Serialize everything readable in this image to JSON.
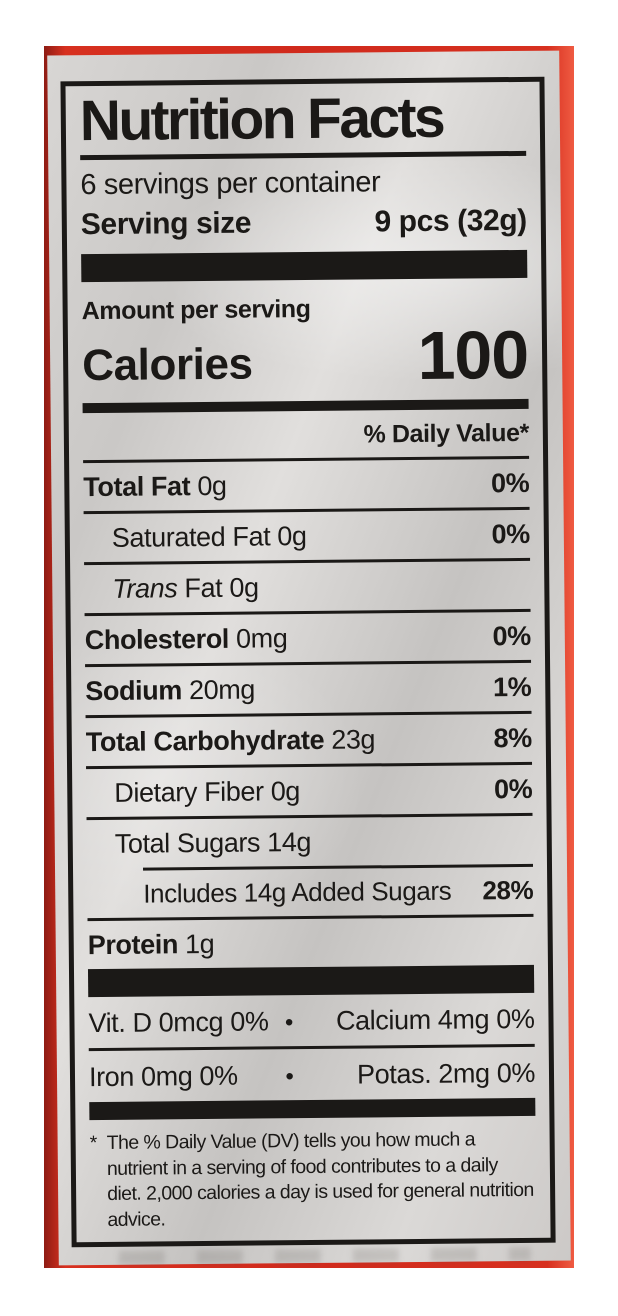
{
  "colors": {
    "package_red": "#d12a1e",
    "label_gray": "#d3d1cf",
    "ink": "#1b1917"
  },
  "panel": {
    "title": "Nutrition Facts",
    "servings_per_container": "6 servings per container",
    "serving_size_label": "Serving size",
    "serving_size_value": "9 pcs (32g)",
    "amount_per_serving": "Amount per serving",
    "calories_label": "Calories",
    "calories_value": "100",
    "daily_value_header": "% Daily Value*",
    "nutrients": [
      {
        "name": "Total Fat",
        "amount": "0g",
        "dv": "0%"
      },
      {
        "name": "Saturated Fat",
        "amount": "0g",
        "dv": "0%"
      },
      {
        "name_italic": "Trans",
        "name_rest": "Fat",
        "amount": "0g",
        "dv": ""
      },
      {
        "name": "Cholesterol",
        "amount": "0mg",
        "dv": "0%"
      },
      {
        "name": "Sodium",
        "amount": "20mg",
        "dv": "1%"
      },
      {
        "name": "Total Carbohydrate",
        "amount": "23g",
        "dv": "8%"
      },
      {
        "name": "Dietary Fiber",
        "amount": "0g",
        "dv": "0%"
      },
      {
        "name": "Total Sugars",
        "amount": "14g",
        "dv": ""
      },
      {
        "name": "Includes 14g Added Sugars",
        "amount": "",
        "dv": "28%"
      },
      {
        "name": "Protein",
        "amount": "1g",
        "dv": ""
      }
    ],
    "micronutrients": {
      "bullet": "•",
      "rows": [
        {
          "left": "Vit. D 0mcg 0%",
          "right": "Calcium 4mg 0%"
        },
        {
          "left": "Iron 0mg 0%",
          "right": "Potas. 2mg 0%"
        }
      ]
    },
    "footnote": {
      "asterisk": "*",
      "text": "The % Daily Value (DV) tells you how much a nutrient in a serving of food contributes to a daily diet. 2,000 calories a day is used for general nutrition advice."
    }
  }
}
